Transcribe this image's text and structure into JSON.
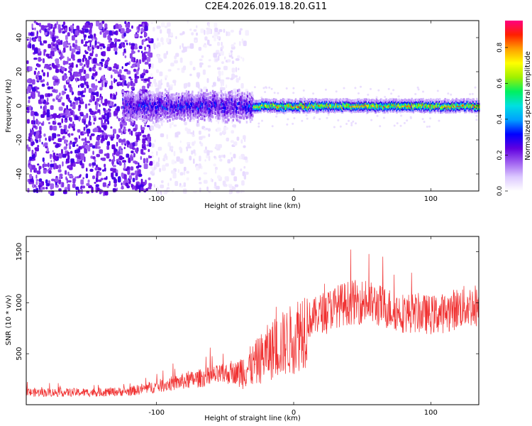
{
  "title": "C2E4.2026.019.18.20.G11",
  "chart_data": [
    {
      "type": "heatmap",
      "name": "spectrogram",
      "xlabel": "Height of straight line (km)",
      "ylabel": "Frequency (Hz)",
      "xlim": [
        -195,
        135
      ],
      "ylim": [
        -50,
        50
      ],
      "xticks": [
        -100,
        0,
        100
      ],
      "yticks": [
        -40,
        -20,
        0,
        20,
        40
      ],
      "colorbar": {
        "label": "Normalized spectral amplitude",
        "range": [
          0,
          0.95
        ],
        "ticks": [
          0.0,
          0.2,
          0.4,
          0.6,
          0.8
        ],
        "colormap": [
          "#ffffff",
          "#dcc8ff",
          "#a060f0",
          "#6000e0",
          "#0000ff",
          "#00a0ff",
          "#00e0e0",
          "#00f060",
          "#a0f000",
          "#ffff00",
          "#ffa000",
          "#ff2000",
          "#ff0080"
        ]
      },
      "features": {
        "noise_region_x": [
          -195,
          -35
        ],
        "signal_onset_x": -125,
        "signal_center_hz": 0,
        "signal_halfwidth_hz": 3
      }
    },
    {
      "type": "line",
      "name": "snr",
      "xlabel": "Height of straight line (km)",
      "ylabel": "SNR (10 * v/v)",
      "xlim": [
        -195,
        135
      ],
      "ylim": [
        0,
        1650
      ],
      "xticks": [
        -100,
        0,
        100
      ],
      "yticks": [
        500,
        1000,
        1500
      ],
      "color": "#f03030",
      "trend": {
        "x": [
          -195,
          -150,
          -120,
          -100,
          -80,
          -60,
          -40,
          -30,
          -20,
          -10,
          0,
          10,
          20,
          30,
          40,
          50,
          60,
          70,
          80,
          90,
          100,
          110,
          120,
          135
        ],
        "y": [
          120,
          120,
          130,
          180,
          230,
          280,
          320,
          380,
          500,
          580,
          650,
          820,
          900,
          960,
          1000,
          1010,
          980,
          940,
          900,
          900,
          880,
          900,
          950,
          980
        ]
      }
    }
  ]
}
